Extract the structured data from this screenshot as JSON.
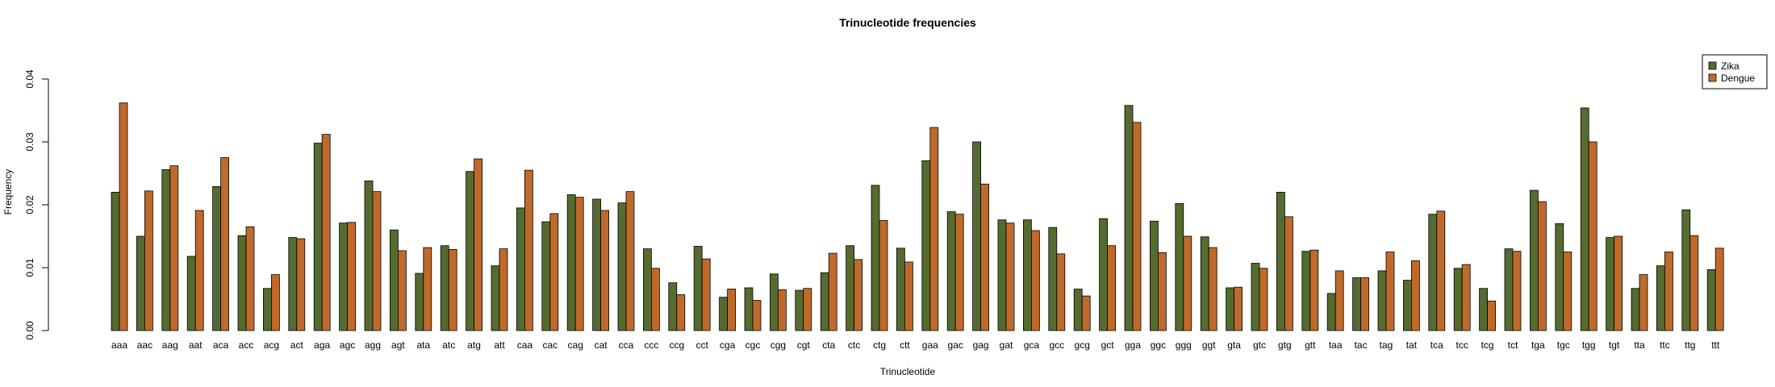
{
  "chart_data": {
    "type": "bar",
    "title": "Trinucleotide frequencies",
    "xlabel": "Trinucleotide",
    "ylabel": "Frequency",
    "ylim": [
      0,
      0.04
    ],
    "yticks": [
      "0.00",
      "0.01",
      "0.02",
      "0.03",
      "0.04"
    ],
    "legend_position": "top-right",
    "categories": [
      "aaa",
      "aac",
      "aag",
      "aat",
      "aca",
      "acc",
      "acg",
      "act",
      "aga",
      "agc",
      "agg",
      "agt",
      "ata",
      "atc",
      "atg",
      "att",
      "caa",
      "cac",
      "cag",
      "cat",
      "cca",
      "ccc",
      "ccg",
      "cct",
      "cga",
      "cgc",
      "cgg",
      "cgt",
      "cta",
      "ctc",
      "ctg",
      "ctt",
      "gaa",
      "gac",
      "gag",
      "gat",
      "gca",
      "gcc",
      "gcg",
      "gct",
      "gga",
      "ggc",
      "ggg",
      "ggt",
      "gta",
      "gtc",
      "gtg",
      "gtt",
      "taa",
      "tac",
      "tag",
      "tat",
      "tca",
      "tcc",
      "tcg",
      "tct",
      "tga",
      "tgc",
      "tgg",
      "tgt",
      "tta",
      "ttc",
      "ttg",
      "ttt"
    ],
    "series": [
      {
        "name": "Zika",
        "color": "#556b2f",
        "values": [
          0.022,
          0.015,
          0.0256,
          0.0118,
          0.0229,
          0.0151,
          0.0067,
          0.0148,
          0.0298,
          0.0171,
          0.0238,
          0.016,
          0.0091,
          0.0135,
          0.0253,
          0.0103,
          0.0195,
          0.0173,
          0.0216,
          0.0209,
          0.0203,
          0.013,
          0.0076,
          0.0134,
          0.0053,
          0.0068,
          0.009,
          0.0064,
          0.0092,
          0.0135,
          0.0231,
          0.0131,
          0.027,
          0.0189,
          0.03,
          0.0176,
          0.0176,
          0.0164,
          0.0066,
          0.0178,
          0.0358,
          0.0174,
          0.0202,
          0.0149,
          0.0068,
          0.0107,
          0.022,
          0.0126,
          0.0059,
          0.0084,
          0.0095,
          0.008,
          0.0185,
          0.0099,
          0.0067,
          0.013,
          0.0223,
          0.017,
          0.0354,
          0.0148,
          0.0067,
          0.0103,
          0.0192,
          0.0097
        ]
      },
      {
        "name": "Dengue",
        "color": "#bf6a2a",
        "values": [
          0.0362,
          0.0222,
          0.0262,
          0.0191,
          0.0275,
          0.0165,
          0.0089,
          0.0146,
          0.0312,
          0.0172,
          0.0221,
          0.0127,
          0.0132,
          0.0129,
          0.0273,
          0.013,
          0.0255,
          0.0186,
          0.0212,
          0.0191,
          0.0221,
          0.0099,
          0.0057,
          0.0114,
          0.0066,
          0.0048,
          0.0065,
          0.0067,
          0.0123,
          0.0113,
          0.0175,
          0.0109,
          0.0323,
          0.0185,
          0.0233,
          0.0171,
          0.0159,
          0.0122,
          0.0055,
          0.0135,
          0.0331,
          0.0124,
          0.015,
          0.0132,
          0.0069,
          0.0099,
          0.0181,
          0.0128,
          0.0095,
          0.0084,
          0.0125,
          0.0111,
          0.019,
          0.0105,
          0.0047,
          0.0126,
          0.0205,
          0.0125,
          0.03,
          0.015,
          0.0089,
          0.0125,
          0.0151,
          0.0131
        ]
      }
    ]
  }
}
